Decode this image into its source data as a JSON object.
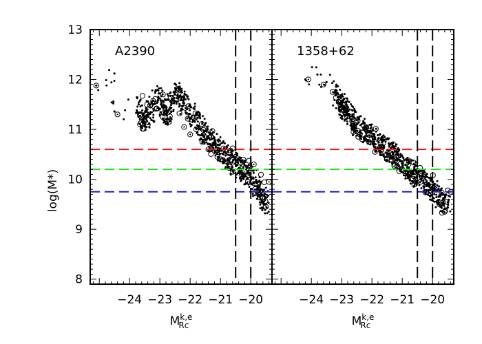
{
  "chart_data": {
    "type": "scatter",
    "ylabel": "log(M*)",
    "xlabel_base": "M",
    "xlabel_sup": "k,e",
    "xlabel_sub": "Rc",
    "ylim": [
      7.9,
      13.0
    ],
    "y_ticks": [
      "8",
      "9",
      "10",
      "11",
      "12",
      "13"
    ],
    "y_tick_values": [
      8,
      9,
      10,
      11,
      12,
      13
    ],
    "mass_cuts": [
      {
        "y": 10.6,
        "color": "#e41a1c"
      },
      {
        "y": 10.2,
        "color": "#22dd22"
      },
      {
        "y": 9.75,
        "color": "#1f1fd6"
      }
    ],
    "panels": [
      {
        "label": "A2390",
        "xlim": [
          -25.3,
          -19.3
        ],
        "x_ticks": [
          "−24",
          "−23",
          "−22",
          "−21",
          "−20"
        ],
        "x_tick_values": [
          -24,
          -23,
          -22,
          -21,
          -20
        ],
        "mag_cuts": [
          -20.5,
          -20.0
        ],
        "points": [
          [
            -25.1,
            11.88
          ],
          [
            -24.5,
            12.12
          ],
          [
            -24.5,
            11.36
          ],
          [
            -23.7,
            11.5
          ],
          [
            -23.5,
            11.15
          ],
          [
            -23.0,
            11.72
          ],
          [
            -22.8,
            11.2
          ],
          [
            -22.5,
            11.75
          ],
          [
            -22.2,
            11.52
          ],
          [
            -21.8,
            11.2
          ],
          [
            -21.5,
            10.9
          ],
          [
            -21.2,
            10.7
          ],
          [
            -20.9,
            10.5
          ],
          [
            -20.6,
            10.35
          ],
          [
            -20.3,
            10.2
          ],
          [
            -20.0,
            10.05
          ],
          [
            -19.7,
            9.8
          ],
          [
            -19.5,
            9.5
          ]
        ],
        "circled": [
          [
            -25.1,
            11.88
          ],
          [
            -24.4,
            11.3
          ],
          [
            -23.4,
            11.1
          ],
          [
            -22.9,
            11.7
          ],
          [
            -22.7,
            11.15
          ],
          [
            -22.4,
            11.78
          ],
          [
            -22.3,
            11.62
          ],
          [
            -22.2,
            11.05
          ],
          [
            -22.0,
            10.9
          ],
          [
            -21.8,
            11.0
          ],
          [
            -21.6,
            10.75
          ],
          [
            -21.4,
            10.6
          ],
          [
            -21.3,
            10.85
          ],
          [
            -21.1,
            10.45
          ],
          [
            -20.9,
            10.62
          ],
          [
            -20.7,
            10.25
          ],
          [
            -20.5,
            10.45
          ],
          [
            -20.3,
            10.1
          ],
          [
            -20.1,
            9.95
          ],
          [
            -19.9,
            10.3
          ],
          [
            -19.7,
            9.7
          ],
          [
            -19.5,
            9.45
          ],
          [
            -19.4,
            9.95
          ]
        ]
      },
      {
        "label": "1358+62",
        "xlim": [
          -25.3,
          -19.3
        ],
        "x_ticks": [
          "−24",
          "−23",
          "−22",
          "−21",
          "−20"
        ],
        "x_tick_values": [
          -24,
          -23,
          -22,
          -21,
          -20
        ],
        "mag_cuts": [
          -20.5,
          -20.0
        ],
        "points": [
          [
            -24.2,
            12.0
          ],
          [
            -23.8,
            12.1
          ],
          [
            -23.5,
            11.95
          ],
          [
            -23.2,
            11.7
          ],
          [
            -23.0,
            11.5
          ],
          [
            -22.8,
            11.3
          ],
          [
            -22.5,
            11.1
          ],
          [
            -22.2,
            10.95
          ],
          [
            -21.9,
            10.8
          ],
          [
            -21.6,
            10.65
          ],
          [
            -21.3,
            10.5
          ],
          [
            -21.0,
            10.35
          ],
          [
            -20.7,
            10.15
          ],
          [
            -20.4,
            10.0
          ],
          [
            -20.1,
            9.85
          ],
          [
            -19.8,
            9.65
          ],
          [
            -19.5,
            9.5
          ]
        ],
        "circled": [
          [
            -24.1,
            12.0
          ],
          [
            -23.6,
            11.9
          ],
          [
            -23.3,
            11.75
          ],
          [
            -23.1,
            11.55
          ],
          [
            -22.9,
            11.25
          ],
          [
            -22.6,
            11.05
          ],
          [
            -22.4,
            10.9
          ],
          [
            -22.1,
            10.75
          ],
          [
            -21.9,
            10.55
          ],
          [
            -21.7,
            10.6
          ],
          [
            -21.5,
            10.4
          ],
          [
            -21.2,
            10.45
          ],
          [
            -21.0,
            10.2
          ],
          [
            -20.8,
            10.3
          ],
          [
            -20.6,
            10.05
          ],
          [
            -20.4,
            9.95
          ],
          [
            -20.2,
            9.75
          ],
          [
            -20.0,
            9.85
          ],
          [
            -19.8,
            9.55
          ],
          [
            -19.6,
            9.35
          ],
          [
            -19.4,
            9.75
          ]
        ]
      }
    ]
  }
}
